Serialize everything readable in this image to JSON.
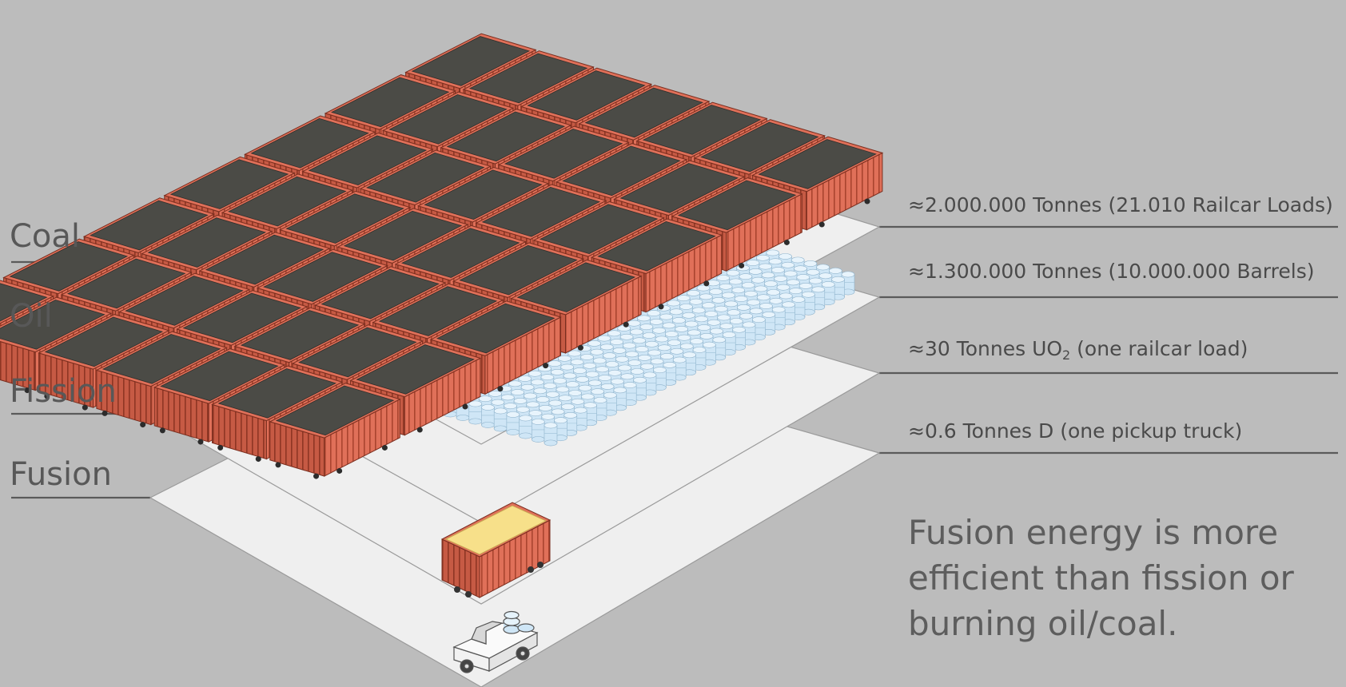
{
  "layers": [
    {
      "name": "Coal",
      "amount": "≈2.000.000 Tonnes (21.010 Railcar Loads)"
    },
    {
      "name": "Oil",
      "amount": "≈1.300.000 Tonnes (10.000.000 Barrels)"
    },
    {
      "name": "Fission",
      "amount_prefix": "≈30 Tonnes UO",
      "amount_sub": "2",
      "amount_suffix": " (one railcar load)"
    },
    {
      "name": "Fusion",
      "amount": "≈0.6 Tonnes D (one pickup truck)"
    }
  ],
  "note": "Fusion energy is more efficient than fission or burning oil/coal.",
  "colors": {
    "background": "#bcbcbc",
    "platform": "#efefef",
    "railcar_body": "#e07059",
    "coal_load": "#4b4b46",
    "uo2_load": "#f7e08a",
    "barrel": "#cfe6f6",
    "leader_line": "#5a5a5a"
  },
  "icons": [
    "coal-railcar-icon",
    "oil-barrel-icon",
    "uo2-railcar-icon",
    "pickup-truck-icon"
  ]
}
